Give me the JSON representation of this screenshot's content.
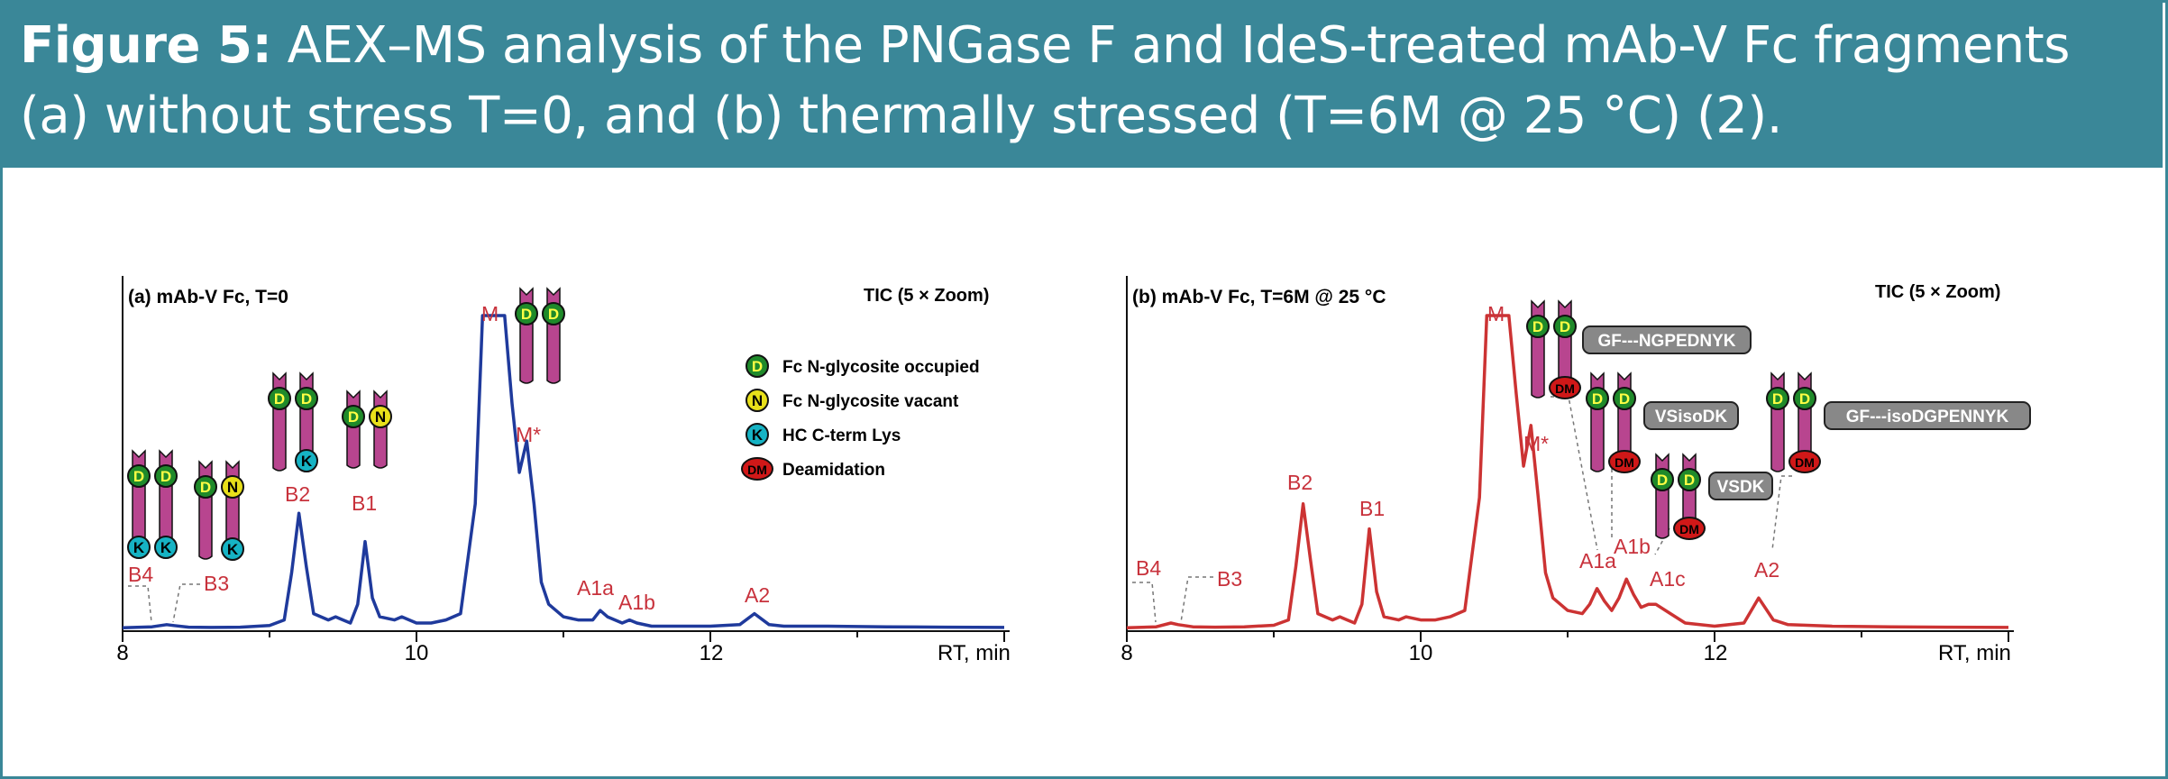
{
  "figure": {
    "label": "Figure 5:",
    "caption": "AEX–MS analysis of the PNGase F and IdeS-treated mAb-V Fc fragments (a) without stress T=0, and (b) thermally stressed (T=6M @ 25 °C) (2)."
  },
  "colors": {
    "header": "#3a8798",
    "trace_a": "#1f3a9c",
    "trace_b": "#cc3333",
    "label_red": "#c8323c",
    "bar": "#b8458f"
  },
  "legend": [
    {
      "symbol": "D",
      "text": "Fc N-glycosite occupied",
      "color": "#1f8a2a",
      "letter_color": "#ffff44"
    },
    {
      "symbol": "N",
      "text": "Fc N-glycosite vacant",
      "color": "#e8e01a",
      "letter_color": "#000000"
    },
    {
      "symbol": "K",
      "text": "HC C-term Lys",
      "color": "#16b3c4",
      "letter_color": "#000000"
    },
    {
      "symbol": "DM",
      "text": "Deamidation",
      "color": "#d01818",
      "letter_color": "#000000"
    }
  ],
  "chart_data": [
    {
      "type": "line",
      "title": "(a) mAb-V Fc, T=0",
      "note": "TIC (5 × Zoom)",
      "xlabel": "RT, min",
      "xlim": [
        8,
        14
      ],
      "xticks": [
        "8",
        "10",
        "12"
      ],
      "series": [
        {
          "x": [
            8.0,
            8.2,
            8.3,
            8.35,
            8.45,
            8.6,
            8.8,
            9.0,
            9.1,
            9.15,
            9.2,
            9.25,
            9.3,
            9.4,
            9.45,
            9.5,
            9.55,
            9.6,
            9.65,
            9.7,
            9.75,
            9.85,
            9.9,
            10.0,
            10.1,
            10.2,
            10.3,
            10.4,
            10.45,
            10.5,
            10.6,
            10.65,
            10.7,
            10.75,
            10.8,
            10.85,
            10.9,
            11.0,
            11.1,
            11.2,
            11.25,
            11.3,
            11.4,
            11.45,
            11.5,
            11.6,
            11.8,
            12.0,
            12.2,
            12.3,
            12.4,
            12.5,
            12.8,
            13.2,
            13.6,
            14.0
          ],
          "y": [
            0.5,
            0.8,
            1.5,
            1.2,
            0.7,
            0.6,
            0.7,
            1.2,
            3,
            18,
            37,
            20,
            5,
            3,
            4,
            3,
            2,
            8,
            28,
            10,
            4,
            3,
            4,
            2,
            2,
            3,
            5,
            40,
            100,
            100,
            100,
            72,
            50,
            60,
            40,
            15,
            8,
            4,
            3,
            3,
            6,
            4,
            2,
            3,
            2,
            1,
            1,
            1,
            1.5,
            5,
            1.5,
            1,
            1,
            0.8,
            0.7,
            0.6
          ]
        }
      ],
      "peak_labels": [
        "B4",
        "B3",
        "B2",
        "B1",
        "M",
        "M*",
        "A1a",
        "A1b",
        "A2"
      ]
    },
    {
      "type": "line",
      "title": "(b) mAb-V Fc, T=6M @ 25 °C",
      "note": "TIC (5 × Zoom)",
      "xlabel": "RT, min",
      "xlim": [
        8,
        14
      ],
      "xticks": [
        "8",
        "10",
        "12"
      ],
      "series": [
        {
          "x": [
            8.0,
            8.2,
            8.3,
            8.35,
            8.45,
            8.6,
            8.8,
            9.0,
            9.1,
            9.15,
            9.2,
            9.25,
            9.3,
            9.4,
            9.45,
            9.5,
            9.55,
            9.6,
            9.65,
            9.7,
            9.75,
            9.85,
            9.9,
            10.0,
            10.1,
            10.2,
            10.3,
            10.4,
            10.45,
            10.5,
            10.6,
            10.65,
            10.7,
            10.75,
            10.8,
            10.85,
            10.9,
            11.0,
            11.1,
            11.15,
            11.2,
            11.25,
            11.3,
            11.35,
            11.4,
            11.45,
            11.5,
            11.55,
            11.6,
            11.7,
            11.8,
            12.0,
            12.2,
            12.3,
            12.4,
            12.5,
            12.8,
            13.2,
            13.6,
            14.0
          ],
          "y": [
            0.5,
            0.8,
            2,
            1.5,
            0.8,
            0.7,
            0.8,
            1.3,
            3,
            20,
            40,
            22,
            5,
            3,
            4,
            3,
            2,
            8,
            32,
            12,
            4,
            3,
            4,
            3,
            3,
            4,
            6,
            42,
            100,
            100,
            100,
            75,
            52,
            65,
            42,
            18,
            10,
            6,
            5,
            8,
            13,
            9,
            6,
            10,
            16,
            11,
            7,
            8,
            8,
            5,
            2,
            1,
            2,
            10,
            3,
            1.5,
            1,
            0.8,
            0.7,
            0.6
          ]
        }
      ],
      "peak_labels": [
        "B4",
        "B3",
        "B2",
        "B1",
        "M",
        "M*",
        "A1a",
        "A1b",
        "A1c",
        "A2"
      ],
      "peptide_labels": [
        "GF---NGPEDNYK",
        "VSisoDK",
        "VSDK",
        "GF---isoDGPENNYK"
      ]
    }
  ]
}
